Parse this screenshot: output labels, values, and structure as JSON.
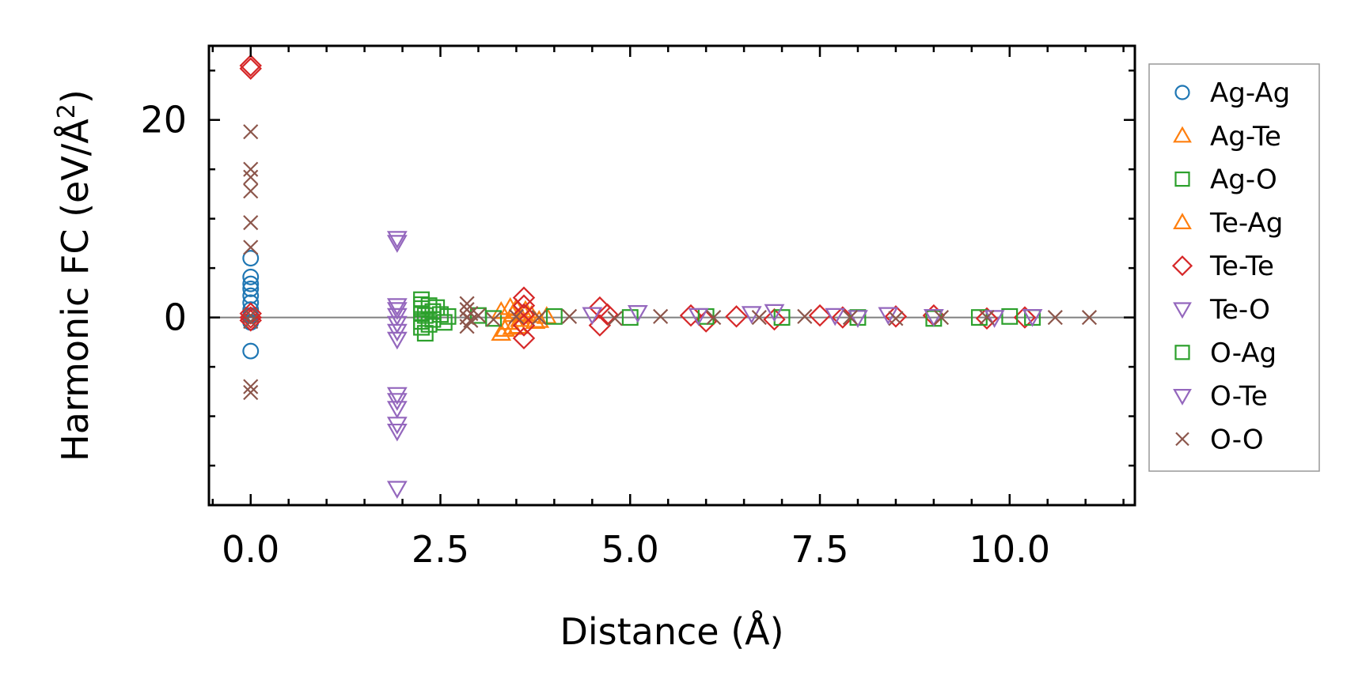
{
  "chart_data": {
    "type": "scatter",
    "title": "",
    "xlabel": "Distance (Å)",
    "ylabel_main": "Harmonic FC (eV/Å",
    "ylabel_sup": "2",
    "ylabel_close": ")",
    "xlim": [
      -0.55,
      11.65
    ],
    "ylim": [
      -19,
      27.5
    ],
    "xticks": [
      0.0,
      2.5,
      5.0,
      7.5,
      10.0
    ],
    "xtick_labels": [
      "0.0",
      "2.5",
      "5.0",
      "7.5",
      "10.0"
    ],
    "yticks": [
      0,
      20
    ],
    "ytick_labels": [
      "0",
      "20"
    ],
    "zero_line": true,
    "legend_position": "right",
    "series": [
      {
        "name": "Ag-Ag",
        "marker": "circle",
        "color": "#1f77b4",
        "x": [
          0,
          0,
          0,
          0,
          0,
          0,
          0,
          0,
          0,
          0
        ],
        "y": [
          6.0,
          4.1,
          3.4,
          2.9,
          2.2,
          1.5,
          0.8,
          0.2,
          -0.5,
          -3.4
        ]
      },
      {
        "name": "Ag-Te",
        "marker": "triangle-up",
        "color": "#ff7f0e",
        "x": [
          3.3,
          3.35,
          3.4,
          3.45,
          3.5,
          3.55,
          3.6,
          3.7,
          3.8,
          3.3,
          3.45
        ],
        "y": [
          -1.6,
          -1.2,
          -0.5,
          0.3,
          0.9,
          -0.2,
          0.4,
          0.2,
          -0.3,
          0.6,
          -1.0
        ]
      },
      {
        "name": "Ag-O",
        "marker": "square",
        "color": "#2ca02c",
        "x": [
          2.25,
          2.25,
          2.25,
          2.25,
          2.25,
          2.25,
          2.3,
          2.3,
          2.35,
          2.35,
          2.4,
          2.4,
          2.45,
          2.5,
          2.55,
          2.6,
          3.0,
          3.2
        ],
        "y": [
          1.8,
          1.3,
          0.9,
          0.4,
          -0.4,
          -1.0,
          -1.6,
          0.2,
          1.2,
          -0.7,
          0.6,
          -0.2,
          1.0,
          0.3,
          -0.5,
          0.1,
          0.2,
          -0.1
        ]
      },
      {
        "name": "Te-Ag",
        "marker": "triangle-up",
        "color": "#ff7f0e",
        "x": [
          3.42,
          3.52,
          3.62,
          3.75,
          3.9
        ],
        "y": [
          1.0,
          -0.9,
          0.7,
          -0.4,
          0.1
        ]
      },
      {
        "name": "Te-Te",
        "marker": "diamond",
        "color": "#d62728",
        "x": [
          0,
          0,
          0,
          0,
          0,
          3.6,
          3.6,
          3.6,
          3.6,
          3.6,
          4.6,
          4.6,
          4.7,
          5.8,
          6.0,
          6.4,
          6.9,
          7.5,
          7.8,
          8.5,
          9.0,
          9.7,
          10.2
        ],
        "y": [
          25.5,
          25.2,
          0.4,
          0.0,
          -0.3,
          2.0,
          1.2,
          0.3,
          -0.8,
          -2.1,
          1.0,
          -0.8,
          0.3,
          0.2,
          -0.4,
          0.1,
          -0.2,
          0.2,
          0.0,
          0.1,
          0.2,
          -0.1,
          0.0
        ]
      },
      {
        "name": "Te-O",
        "marker": "triangle-down",
        "color": "#9467bd",
        "x": [
          1.93,
          1.93,
          1.93,
          1.93,
          1.93,
          1.93,
          1.93,
          1.93,
          1.93,
          1.93,
          1.93,
          1.93,
          1.93,
          1.93
        ],
        "y": [
          8.0,
          7.6,
          1.2,
          0.8,
          0.2,
          -0.6,
          -1.4,
          -2.2,
          -7.8,
          -8.4,
          -9.2,
          -10.8,
          -11.5,
          -17.3
        ]
      },
      {
        "name": "O-Ag",
        "marker": "square",
        "color": "#2ca02c",
        "x": [
          4.0,
          5.0,
          6.0,
          7.0,
          8.0,
          9.0,
          9.6,
          10.0,
          10.3
        ],
        "y": [
          0.1,
          0.0,
          0.1,
          0.0,
          0.0,
          -0.1,
          0.0,
          0.1,
          0.0
        ]
      },
      {
        "name": "O-Te",
        "marker": "triangle-down",
        "color": "#9467bd",
        "x": [
          4.5,
          5.1,
          5.9,
          6.6,
          6.9,
          7.7,
          8.0,
          8.4,
          9.0,
          9.8,
          10.3
        ],
        "y": [
          0.3,
          0.5,
          0.2,
          0.4,
          0.6,
          0.2,
          0.0,
          0.3,
          0.1,
          0.0,
          0.1
        ]
      },
      {
        "name": "O-O",
        "marker": "x",
        "color": "#8c564b",
        "x": [
          0,
          0,
          0,
          0,
          0,
          0,
          0,
          0,
          0,
          0,
          2.85,
          2.85,
          2.85,
          2.85,
          2.9,
          2.9,
          3.0,
          3.2,
          3.5,
          3.8,
          4.2,
          4.8,
          5.4,
          6.1,
          6.7,
          7.3,
          7.9,
          8.5,
          9.1,
          9.7,
          10.6,
          11.05
        ],
        "y": [
          18.8,
          15.0,
          14.2,
          12.8,
          9.6,
          7.1,
          0.2,
          -0.4,
          -7.0,
          -7.6,
          1.4,
          0.8,
          0.0,
          -0.9,
          0.4,
          -0.3,
          0.2,
          -0.2,
          0.1,
          0.0,
          0.1,
          -0.1,
          0.1,
          0.0,
          0.0,
          0.1,
          0.0,
          -0.1,
          0.0,
          0.0,
          0.0,
          0.0
        ]
      }
    ]
  }
}
